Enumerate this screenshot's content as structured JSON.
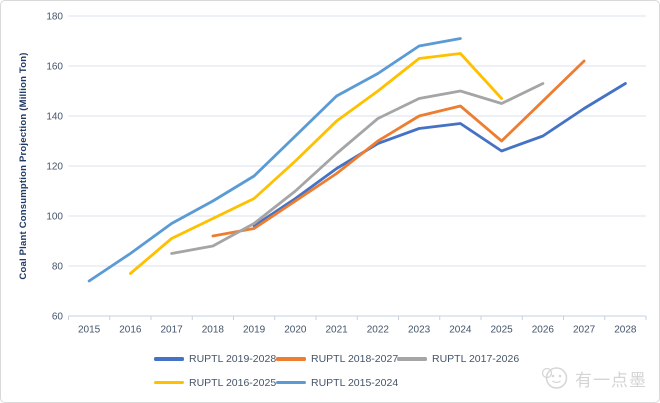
{
  "watermark": {
    "text": "有一点墨",
    "icon": "chat-face-icon"
  },
  "chart_data": {
    "type": "line",
    "title": "",
    "xlabel": "",
    "ylabel": "Coal Plant Consumption Projection (Million Ton)",
    "x": [
      "2015",
      "2016",
      "2017",
      "2018",
      "2019",
      "2020",
      "2021",
      "2022",
      "2023",
      "2024",
      "2025",
      "2026",
      "2027",
      "2028"
    ],
    "ylim": [
      60,
      180
    ],
    "y_ticks": [
      60,
      80,
      100,
      120,
      140,
      160,
      180
    ],
    "grid": true,
    "legend_position": "bottom",
    "series": [
      {
        "name": "RUPTL 2019-2028",
        "color": "#4472C4",
        "x_start": "2019",
        "values": [
          96,
          107,
          119,
          129,
          135,
          137,
          126,
          132,
          143,
          153
        ]
      },
      {
        "name": "RUPTL 2018-2027",
        "color": "#ED7D31",
        "x_start": "2018",
        "values": [
          92,
          95,
          106,
          117,
          130,
          140,
          144,
          130,
          146,
          162
        ]
      },
      {
        "name": "RUPTL 2017-2026",
        "color": "#A5A5A5",
        "x_start": "2017",
        "values": [
          85,
          88,
          97,
          110,
          125,
          139,
          147,
          150,
          145,
          153
        ]
      },
      {
        "name": "RUPTL 2016-2025",
        "color": "#FFC000",
        "x_start": "2016",
        "values": [
          77,
          91,
          99,
          107,
          122,
          138,
          150,
          163,
          165,
          147
        ]
      },
      {
        "name": "RUPTL 2015-2024",
        "color": "#5B9BD5",
        "x_start": "2015",
        "values": [
          74,
          85,
          97,
          106,
          116,
          132,
          148,
          157,
          168,
          171
        ]
      }
    ]
  }
}
